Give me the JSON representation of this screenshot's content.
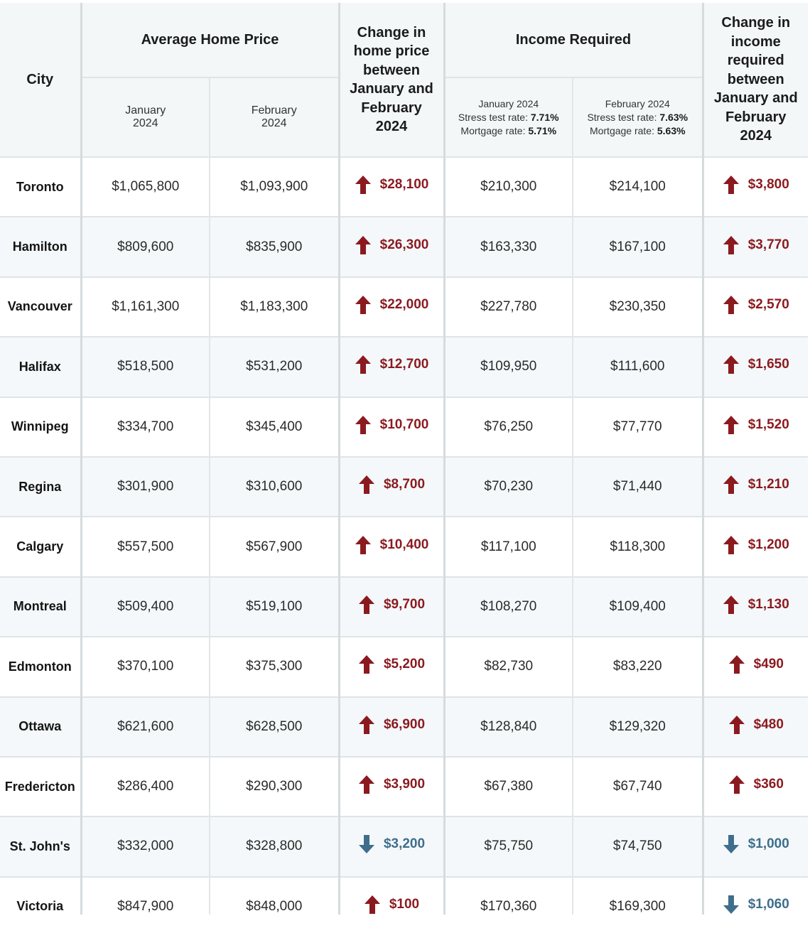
{
  "header": {
    "city": "City",
    "avg_home_price": "Average Home Price",
    "jan_line1": "January",
    "jan_line2": "2024",
    "feb_line1": "February",
    "feb_line2": "2024",
    "change_price": [
      "Change in",
      "home price",
      "between",
      "January and",
      "February",
      "2024"
    ],
    "income_required": "Income Required",
    "inc_jan": {
      "title": "January 2024",
      "stress_label": "Stress test rate: ",
      "stress_value": "7.71%",
      "mortgage_label": "Mortgage rate: ",
      "mortgage_value": "5.71%"
    },
    "inc_feb": {
      "title": "February 2024",
      "stress_label": "Stress test rate: ",
      "stress_value": "7.63%",
      "mortgage_label": "Mortgage rate: ",
      "mortgage_value": "5.63%"
    },
    "change_income": [
      "Change in",
      "income",
      "required",
      "between",
      "January and",
      "February",
      "2024"
    ]
  },
  "colors": {
    "up": "#8b1a1f",
    "down": "#3e6e8c"
  },
  "chart_data": {
    "type": "table",
    "columns": [
      "City",
      "Average Home Price January 2024",
      "Average Home Price February 2024",
      "Change in home price between January and February 2024",
      "Income Required January 2024",
      "Income Required February 2024",
      "Change in income required between January and February 2024"
    ],
    "rows": [
      {
        "city": "Toronto",
        "price_jan": "$1,065,800",
        "price_feb": "$1,093,900",
        "price_change": "$28,100",
        "price_dir": "up",
        "inc_jan": "$210,300",
        "inc_feb": "$214,100",
        "inc_change": "$3,800",
        "inc_dir": "up"
      },
      {
        "city": "Hamilton",
        "price_jan": "$809,600",
        "price_feb": "$835,900",
        "price_change": "$26,300",
        "price_dir": "up",
        "inc_jan": "$163,330",
        "inc_feb": "$167,100",
        "inc_change": "$3,770",
        "inc_dir": "up"
      },
      {
        "city": "Vancouver",
        "price_jan": "$1,161,300",
        "price_feb": "$1,183,300",
        "price_change": "$22,000",
        "price_dir": "up",
        "inc_jan": "$227,780",
        "inc_feb": "$230,350",
        "inc_change": "$2,570",
        "inc_dir": "up"
      },
      {
        "city": "Halifax",
        "price_jan": "$518,500",
        "price_feb": "$531,200",
        "price_change": "$12,700",
        "price_dir": "up",
        "inc_jan": "$109,950",
        "inc_feb": "$111,600",
        "inc_change": "$1,650",
        "inc_dir": "up"
      },
      {
        "city": "Winnipeg",
        "price_jan": "$334,700",
        "price_feb": "$345,400",
        "price_change": "$10,700",
        "price_dir": "up",
        "inc_jan": "$76,250",
        "inc_feb": "$77,770",
        "inc_change": "$1,520",
        "inc_dir": "up"
      },
      {
        "city": "Regina",
        "price_jan": "$301,900",
        "price_feb": "$310,600",
        "price_change": "$8,700",
        "price_dir": "up",
        "inc_jan": "$70,230",
        "inc_feb": "$71,440",
        "inc_change": "$1,210",
        "inc_dir": "up"
      },
      {
        "city": "Calgary",
        "price_jan": "$557,500",
        "price_feb": "$567,900",
        "price_change": "$10,400",
        "price_dir": "up",
        "inc_jan": "$117,100",
        "inc_feb": "$118,300",
        "inc_change": "$1,200",
        "inc_dir": "up"
      },
      {
        "city": "Montreal",
        "price_jan": "$509,400",
        "price_feb": "$519,100",
        "price_change": "$9,700",
        "price_dir": "up",
        "inc_jan": "$108,270",
        "inc_feb": "$109,400",
        "inc_change": "$1,130",
        "inc_dir": "up"
      },
      {
        "city": "Edmonton",
        "price_jan": "$370,100",
        "price_feb": "$375,300",
        "price_change": "$5,200",
        "price_dir": "up",
        "inc_jan": "$82,730",
        "inc_feb": "$83,220",
        "inc_change": "$490",
        "inc_dir": "up"
      },
      {
        "city": "Ottawa",
        "price_jan": "$621,600",
        "price_feb": "$628,500",
        "price_change": "$6,900",
        "price_dir": "up",
        "inc_jan": "$128,840",
        "inc_feb": "$129,320",
        "inc_change": "$480",
        "inc_dir": "up"
      },
      {
        "city": "Fredericton",
        "price_jan": "$286,400",
        "price_feb": "$290,300",
        "price_change": "$3,900",
        "price_dir": "up",
        "inc_jan": "$67,380",
        "inc_feb": "$67,740",
        "inc_change": "$360",
        "inc_dir": "up"
      },
      {
        "city": "St. John's",
        "price_jan": "$332,000",
        "price_feb": "$328,800",
        "price_change": "$3,200",
        "price_dir": "down",
        "inc_jan": "$75,750",
        "inc_feb": "$74,750",
        "inc_change": "$1,000",
        "inc_dir": "down"
      },
      {
        "city": "Victoria",
        "price_jan": "$847,900",
        "price_feb": "$848,000",
        "price_change": "$100",
        "price_dir": "up",
        "inc_jan": "$170,360",
        "inc_feb": "$169,300",
        "inc_change": "$1,060",
        "inc_dir": "down"
      }
    ]
  }
}
